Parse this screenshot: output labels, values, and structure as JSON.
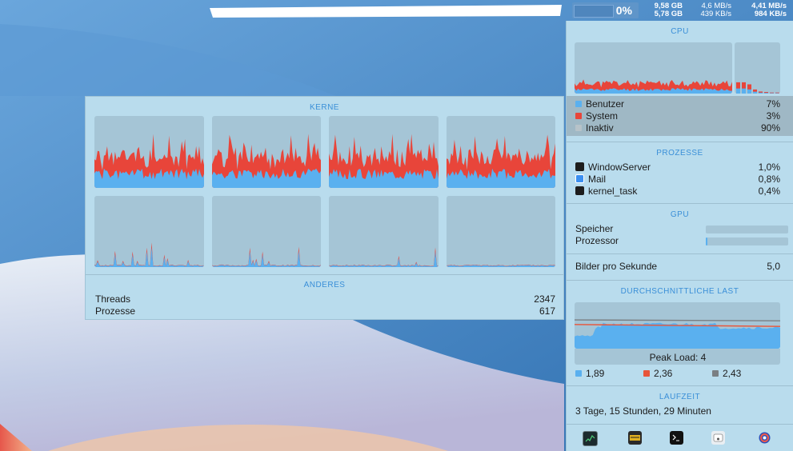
{
  "menubar": {
    "cpu_percent": "0%",
    "memory": [
      "9,58 GB",
      "5,78 GB"
    ],
    "disk": [
      "4,6 MB/s",
      "439 KB/s"
    ],
    "network": [
      "4,41 MB/s",
      "984 KB/s"
    ]
  },
  "kerne_popup": {
    "title": "KERNE",
    "anderes_title": "ANDERES",
    "threads_label": "Threads",
    "threads_value": "2347",
    "processes_label": "Prozesse",
    "processes_value": "617"
  },
  "cpu": {
    "title": "CPU",
    "legend": [
      {
        "label": "Benutzer",
        "value": "7%",
        "color": "#5ab0ef"
      },
      {
        "label": "System",
        "value": "3%",
        "color": "#e8453a"
      },
      {
        "label": "Inaktiv",
        "value": "90%",
        "color": "#b7c3c9"
      }
    ]
  },
  "processes": {
    "title": "PROZESSE",
    "items": [
      {
        "name": "WindowServer",
        "value": "1,0%",
        "icon": "terminal-icon"
      },
      {
        "name": "Mail",
        "value": "0,8%",
        "icon": "mail-icon"
      },
      {
        "name": "kernel_task",
        "value": "0,4%",
        "icon": "terminal-icon"
      }
    ]
  },
  "gpu": {
    "title": "GPU",
    "memory_label": "Speicher",
    "memory_usage": 0.0,
    "processor_label": "Prozessor",
    "processor_usage": 0.02
  },
  "fps": {
    "label": "Bilder pro Sekunde",
    "value": "5,0"
  },
  "load": {
    "title": "DURCHSCHNITTLICHE LAST",
    "peak_label": "Peak Load: 4",
    "legend": [
      {
        "value": "1,89",
        "color": "#5ab0ef"
      },
      {
        "value": "2,36",
        "color": "#e8553a"
      },
      {
        "value": "2,43",
        "color": "#7a7f83"
      }
    ]
  },
  "uptime": {
    "title": "LAUFZEIT",
    "value": "3 Tage, 15 Stunden, 29 Minuten"
  },
  "toolbar": {
    "icons": [
      "activity-monitor-icon",
      "console-icon",
      "terminal-icon",
      "disk-utility-icon",
      "istat-icon"
    ]
  }
}
